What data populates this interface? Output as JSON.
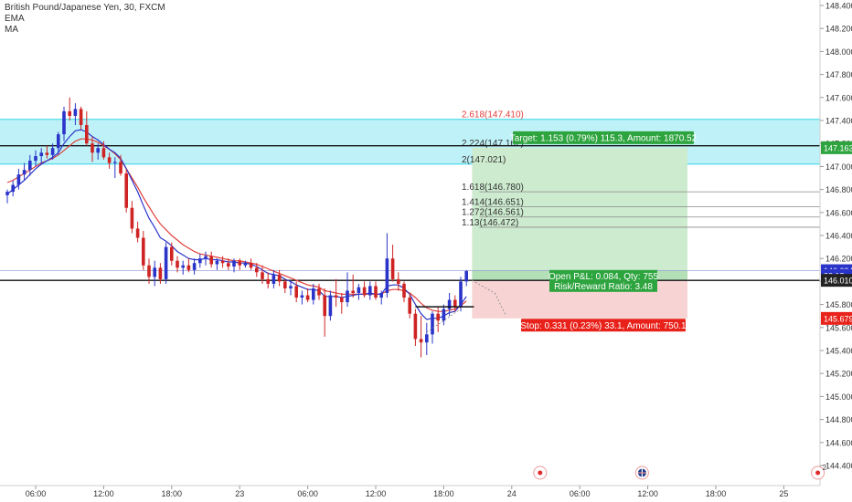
{
  "header": {
    "symbol_title": "British Pound/Japanese Yen, 30, FXCM",
    "indicators": [
      "EMA",
      "MA"
    ]
  },
  "colors": {
    "up": "#2a34c9",
    "down": "#cf2424",
    "ema": "#2a34c9",
    "ma": "#e0403a",
    "fib_band": "#bff2f8",
    "fib_band_border": "#2fd6e6",
    "profit_zone": "#cdebcf",
    "loss_zone": "#f7d3d3",
    "target_label": "#2ea43f",
    "stop_label": "#e8221b",
    "price_line": "#8a8fd4"
  },
  "chart_data": {
    "type": "candlestick",
    "instrument": "British Pound/Japanese Yen",
    "timeframe": "30",
    "source": "FXCM",
    "y_axis": {
      "ticks": [
        148.4,
        148.2,
        148.0,
        147.8,
        147.6,
        147.4,
        147.2,
        147.0,
        146.8,
        146.6,
        146.4,
        146.2,
        146.0,
        145.8,
        145.6,
        145.4,
        145.2,
        145.0,
        144.8,
        144.6,
        144.4
      ],
      "tick_labels": [
        "148.400",
        "148.200",
        "148.000",
        "147.800",
        "147.600",
        "147.400",
        "147.200",
        "147.000",
        "146.800",
        "146.600",
        "146.400",
        "146.200",
        "146.000",
        "145.800",
        "145.600",
        "145.400",
        "145.200",
        "145.000",
        "144.800",
        "144.600",
        "144.400"
      ],
      "range": [
        144.3,
        148.48
      ]
    },
    "x_axis": {
      "tick_labels": [
        "06:00",
        "12:00",
        "18:00",
        "23",
        "06:00",
        "12:00",
        "18:00",
        "24",
        "06:00",
        "12:00",
        "18:00",
        "25"
      ],
      "tick_index": [
        5,
        17,
        29,
        41,
        53,
        65,
        77,
        89,
        101,
        113,
        125,
        137
      ],
      "range_index": [
        -2,
        148
      ]
    },
    "candles": [
      {
        "o": 146.75,
        "h": 146.8,
        "l": 146.68,
        "c": 146.78
      },
      {
        "o": 146.78,
        "h": 146.88,
        "l": 146.74,
        "c": 146.84
      },
      {
        "o": 146.84,
        "h": 146.98,
        "l": 146.8,
        "c": 146.93
      },
      {
        "o": 146.93,
        "h": 147.03,
        "l": 146.88,
        "c": 146.97
      },
      {
        "o": 146.97,
        "h": 147.1,
        "l": 146.92,
        "c": 147.05
      },
      {
        "o": 147.05,
        "h": 147.14,
        "l": 147.0,
        "c": 147.09
      },
      {
        "o": 147.09,
        "h": 147.16,
        "l": 147.02,
        "c": 147.12
      },
      {
        "o": 147.12,
        "h": 147.18,
        "l": 147.07,
        "c": 147.1
      },
      {
        "o": 147.1,
        "h": 147.2,
        "l": 147.06,
        "c": 147.16
      },
      {
        "o": 147.16,
        "h": 147.3,
        "l": 147.1,
        "c": 147.28
      },
      {
        "o": 147.28,
        "h": 147.52,
        "l": 147.22,
        "c": 147.48
      },
      {
        "o": 147.48,
        "h": 147.6,
        "l": 147.4,
        "c": 147.44
      },
      {
        "o": 147.44,
        "h": 147.55,
        "l": 147.36,
        "c": 147.5
      },
      {
        "o": 147.5,
        "h": 147.52,
        "l": 147.32,
        "c": 147.36
      },
      {
        "o": 147.36,
        "h": 147.48,
        "l": 147.18,
        "c": 147.2
      },
      {
        "o": 147.2,
        "h": 147.26,
        "l": 147.04,
        "c": 147.12
      },
      {
        "o": 147.12,
        "h": 147.2,
        "l": 147.06,
        "c": 147.16
      },
      {
        "o": 147.16,
        "h": 147.22,
        "l": 147.06,
        "c": 147.08
      },
      {
        "o": 147.08,
        "h": 147.12,
        "l": 146.98,
        "c": 147.03
      },
      {
        "o": 147.03,
        "h": 147.08,
        "l": 146.9,
        "c": 147.04
      },
      {
        "o": 147.04,
        "h": 147.1,
        "l": 146.92,
        "c": 146.94
      },
      {
        "o": 146.94,
        "h": 146.98,
        "l": 146.6,
        "c": 146.64
      },
      {
        "o": 146.64,
        "h": 146.7,
        "l": 146.42,
        "c": 146.46
      },
      {
        "o": 146.46,
        "h": 146.52,
        "l": 146.34,
        "c": 146.38
      },
      {
        "o": 146.38,
        "h": 146.44,
        "l": 146.1,
        "c": 146.14
      },
      {
        "o": 146.14,
        "h": 146.2,
        "l": 145.98,
        "c": 146.04
      },
      {
        "o": 146.04,
        "h": 146.18,
        "l": 145.96,
        "c": 146.12
      },
      {
        "o": 146.12,
        "h": 146.16,
        "l": 145.98,
        "c": 146.02
      },
      {
        "o": 146.02,
        "h": 146.34,
        "l": 145.98,
        "c": 146.3
      },
      {
        "o": 146.3,
        "h": 146.34,
        "l": 146.14,
        "c": 146.18
      },
      {
        "o": 146.18,
        "h": 146.22,
        "l": 146.08,
        "c": 146.12
      },
      {
        "o": 146.12,
        "h": 146.18,
        "l": 146.06,
        "c": 146.14
      },
      {
        "o": 146.14,
        "h": 146.2,
        "l": 146.08,
        "c": 146.1
      },
      {
        "o": 146.1,
        "h": 146.2,
        "l": 146.06,
        "c": 146.16
      },
      {
        "o": 146.16,
        "h": 146.24,
        "l": 146.12,
        "c": 146.2
      },
      {
        "o": 146.2,
        "h": 146.26,
        "l": 146.14,
        "c": 146.22
      },
      {
        "o": 146.22,
        "h": 146.26,
        "l": 146.12,
        "c": 146.15
      },
      {
        "o": 146.15,
        "h": 146.2,
        "l": 146.1,
        "c": 146.18
      },
      {
        "o": 146.18,
        "h": 146.22,
        "l": 146.12,
        "c": 146.16
      },
      {
        "o": 146.16,
        "h": 146.2,
        "l": 146.1,
        "c": 146.13
      },
      {
        "o": 146.13,
        "h": 146.2,
        "l": 146.08,
        "c": 146.18
      },
      {
        "o": 146.18,
        "h": 146.2,
        "l": 146.1,
        "c": 146.14
      },
      {
        "o": 146.14,
        "h": 146.18,
        "l": 146.12,
        "c": 146.16
      },
      {
        "o": 146.16,
        "h": 146.2,
        "l": 146.1,
        "c": 146.12
      },
      {
        "o": 146.12,
        "h": 146.16,
        "l": 146.04,
        "c": 146.08
      },
      {
        "o": 146.08,
        "h": 146.14,
        "l": 145.98,
        "c": 146.02
      },
      {
        "o": 146.02,
        "h": 146.08,
        "l": 145.94,
        "c": 145.98
      },
      {
        "o": 145.98,
        "h": 146.1,
        "l": 145.94,
        "c": 146.06
      },
      {
        "o": 146.06,
        "h": 146.1,
        "l": 145.96,
        "c": 146.0
      },
      {
        "o": 146.0,
        "h": 146.02,
        "l": 145.9,
        "c": 145.94
      },
      {
        "o": 145.94,
        "h": 146.0,
        "l": 145.88,
        "c": 145.96
      },
      {
        "o": 145.96,
        "h": 146.0,
        "l": 145.82,
        "c": 145.86
      },
      {
        "o": 145.86,
        "h": 145.92,
        "l": 145.8,
        "c": 145.88
      },
      {
        "o": 145.88,
        "h": 145.94,
        "l": 145.82,
        "c": 145.84
      },
      {
        "o": 145.84,
        "h": 145.98,
        "l": 145.8,
        "c": 145.94
      },
      {
        "o": 145.94,
        "h": 145.98,
        "l": 145.84,
        "c": 145.88
      },
      {
        "o": 145.88,
        "h": 145.94,
        "l": 145.52,
        "c": 145.7
      },
      {
        "o": 145.7,
        "h": 145.92,
        "l": 145.66,
        "c": 145.88
      },
      {
        "o": 145.88,
        "h": 146.02,
        "l": 145.78,
        "c": 145.86
      },
      {
        "o": 145.86,
        "h": 145.9,
        "l": 145.72,
        "c": 145.82
      },
      {
        "o": 145.82,
        "h": 146.08,
        "l": 145.78,
        "c": 145.92
      },
      {
        "o": 145.92,
        "h": 146.06,
        "l": 145.86,
        "c": 145.9
      },
      {
        "o": 145.9,
        "h": 145.98,
        "l": 145.84,
        "c": 145.95
      },
      {
        "o": 145.95,
        "h": 146.0,
        "l": 145.86,
        "c": 145.88
      },
      {
        "o": 145.88,
        "h": 146.0,
        "l": 145.84,
        "c": 145.96
      },
      {
        "o": 145.96,
        "h": 146.0,
        "l": 145.84,
        "c": 145.86
      },
      {
        "o": 145.86,
        "h": 145.92,
        "l": 145.8,
        "c": 145.9
      },
      {
        "o": 145.9,
        "h": 146.42,
        "l": 145.86,
        "c": 146.2
      },
      {
        "o": 146.2,
        "h": 146.32,
        "l": 146.0,
        "c": 146.02
      },
      {
        "o": 146.02,
        "h": 146.08,
        "l": 145.92,
        "c": 145.98
      },
      {
        "o": 145.98,
        "h": 146.0,
        "l": 145.82,
        "c": 145.86
      },
      {
        "o": 145.86,
        "h": 145.9,
        "l": 145.68,
        "c": 145.72
      },
      {
        "o": 145.72,
        "h": 145.76,
        "l": 145.44,
        "c": 145.5
      },
      {
        "o": 145.5,
        "h": 145.7,
        "l": 145.34,
        "c": 145.47
      },
      {
        "o": 145.47,
        "h": 145.64,
        "l": 145.36,
        "c": 145.54
      },
      {
        "o": 145.54,
        "h": 145.74,
        "l": 145.46,
        "c": 145.72
      },
      {
        "o": 145.72,
        "h": 145.78,
        "l": 145.56,
        "c": 145.66
      },
      {
        "o": 145.66,
        "h": 145.8,
        "l": 145.62,
        "c": 145.76
      },
      {
        "o": 145.76,
        "h": 145.9,
        "l": 145.7,
        "c": 145.84
      },
      {
        "o": 145.84,
        "h": 145.88,
        "l": 145.74,
        "c": 145.78
      },
      {
        "o": 145.78,
        "h": 146.04,
        "l": 145.74,
        "c": 146.0
      },
      {
        "o": 146.0,
        "h": 146.1,
        "l": 145.96,
        "c": 146.09
      }
    ],
    "ema": [
      146.76,
      146.8,
      146.84,
      146.88,
      146.93,
      146.98,
      147.02,
      147.05,
      147.08,
      147.12,
      147.2,
      147.26,
      147.31,
      147.32,
      147.3,
      147.26,
      147.23,
      147.19,
      147.15,
      147.12,
      147.07,
      146.98,
      146.88,
      146.78,
      146.66,
      146.55,
      146.47,
      146.38,
      146.35,
      146.31,
      146.26,
      146.23,
      146.2,
      146.19,
      146.19,
      146.2,
      146.19,
      146.19,
      146.18,
      146.17,
      146.17,
      146.16,
      146.16,
      146.15,
      146.13,
      146.1,
      146.07,
      146.06,
      146.05,
      146.02,
      146.0,
      145.97,
      145.95,
      145.93,
      145.93,
      145.92,
      145.87,
      145.87,
      145.87,
      145.86,
      145.87,
      145.88,
      145.89,
      145.89,
      145.9,
      145.89,
      145.89,
      145.96,
      145.97,
      145.97,
      145.94,
      145.89,
      145.8,
      145.72,
      145.67,
      145.68,
      145.68,
      145.7,
      145.73,
      145.74,
      145.8,
      145.87
    ],
    "ma": [
      146.86,
      146.88,
      146.91,
      146.94,
      146.97,
      147.0,
      147.03,
      147.05,
      147.07,
      147.1,
      147.14,
      147.18,
      147.22,
      147.24,
      147.24,
      147.23,
      147.21,
      147.18,
      147.15,
      147.11,
      147.06,
      146.98,
      146.9,
      146.82,
      146.73,
      146.65,
      146.57,
      146.5,
      146.45,
      146.4,
      146.36,
      146.32,
      146.29,
      146.26,
      146.24,
      146.23,
      146.22,
      146.21,
      146.2,
      146.19,
      146.18,
      146.18,
      146.17,
      146.16,
      146.15,
      146.13,
      146.11,
      146.09,
      146.07,
      146.05,
      146.03,
      146.01,
      145.99,
      145.97,
      145.96,
      145.95,
      145.92,
      145.91,
      145.9,
      145.89,
      145.89,
      145.89,
      145.89,
      145.89,
      145.89,
      145.89,
      145.89,
      145.92,
      145.93,
      145.93,
      145.92,
      145.9,
      145.86,
      145.81,
      145.77,
      145.75,
      145.74,
      145.74,
      145.75,
      145.76,
      145.79,
      145.83
    ],
    "fib_levels": [
      {
        "ratio": "2.618",
        "price": 147.41,
        "label": "2.618(147.410)"
      },
      {
        "ratio": "2.224",
        "price": 147.162,
        "label": "2.224(147.162)"
      },
      {
        "ratio": "2",
        "price": 147.021,
        "label": "2(147.021)"
      },
      {
        "ratio": "1.618",
        "price": 146.78,
        "label": "1.618(146.780)"
      },
      {
        "ratio": "1.414",
        "price": 146.651,
        "label": "1.414(146.651)"
      },
      {
        "ratio": "1.272",
        "price": 146.561,
        "label": "1.272(146.561)"
      },
      {
        "ratio": "1.13",
        "price": 146.472,
        "label": "1.13(146.472)"
      }
    ],
    "fib_band": {
      "top": 147.41,
      "bottom": 147.021
    },
    "horizontal_lines": [
      147.18,
      146.01
    ],
    "position": {
      "entry": 146.01,
      "target": 147.163,
      "stop": 145.679,
      "current_price": 146.094,
      "start_index": 82,
      "end_index": 120,
      "target_text": "Target: 1.153 (0.79%) 115.3, Amount: 1870.52",
      "stop_text": "Stop: 0.331 (0.23%) 33.1, Amount: 750.1",
      "pnl_text": "Open P&L: 0.084, Qty: 755",
      "rr_text": "Risk/Reward Ratio: 3.48"
    },
    "price_tags": [
      {
        "label": "147.163",
        "price": 147.163,
        "color": "#2ea43f"
      },
      {
        "label": "146.094",
        "price": 146.094,
        "color": "#2a34c9"
      },
      {
        "label": "22:18",
        "price": 146.052,
        "color": "#2a34c9"
      },
      {
        "label": "146.010",
        "price": 146.01,
        "color": "#222222"
      },
      {
        "label": "145.679",
        "price": 145.679,
        "color": "#e8221b"
      }
    ],
    "events": [
      {
        "index": 94,
        "kind": "dot"
      },
      {
        "index": 112,
        "kind": "flag"
      },
      {
        "index": 143,
        "kind": "dot",
        "count": "2"
      }
    ],
    "grid": false,
    "legend": "top-left"
  }
}
